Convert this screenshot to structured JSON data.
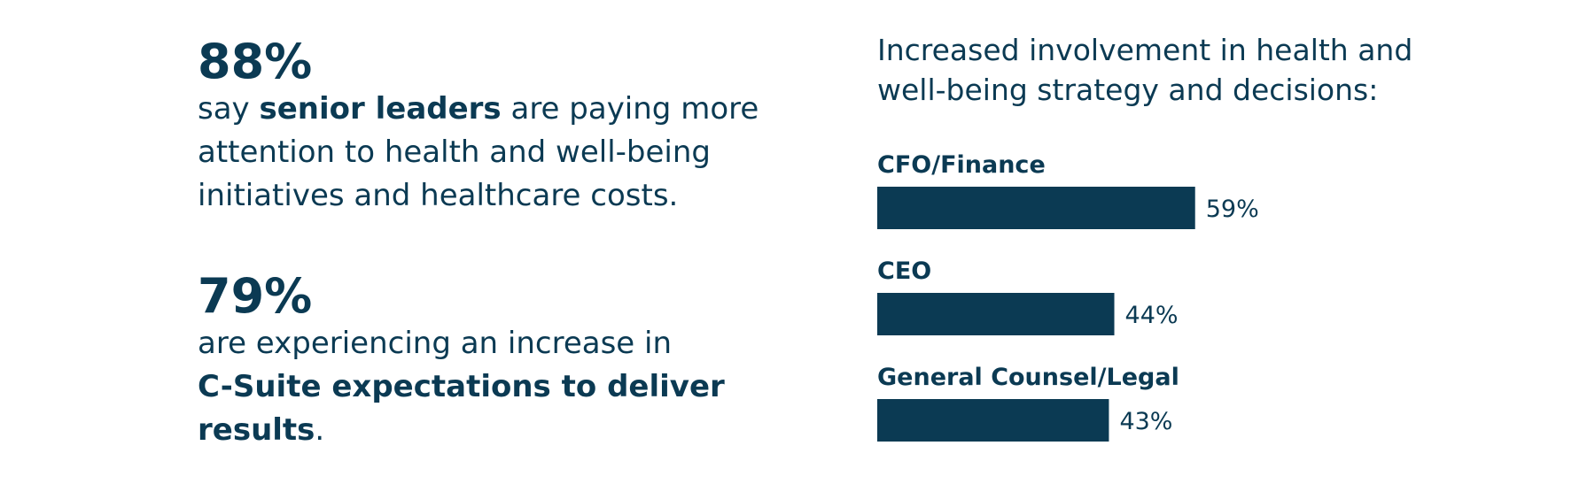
{
  "stats": [
    {
      "value": "88%",
      "text_parts": [
        {
          "text": "say ",
          "bold": false
        },
        {
          "text": "senior leaders",
          "bold": true
        },
        {
          "text": " are paying more attention to health and well-being initiatives and healthcare costs.",
          "bold": false
        }
      ]
    },
    {
      "value": "79%",
      "text_parts": [
        {
          "text": "are experiencing an increase in ",
          "bold": false
        },
        {
          "text": "C-Suite expectations to deliver results",
          "bold": true
        },
        {
          "text": ".",
          "bold": false
        }
      ]
    }
  ],
  "colors": {
    "primary": "#0b3a53",
    "background": "#ffffff"
  },
  "chart_data": {
    "type": "bar",
    "orientation": "horizontal",
    "title": "Increased involvement in health and well-being strategy and decisions:",
    "categories": [
      "CFO/Finance",
      "CEO",
      "General Counsel/Legal"
    ],
    "values": [
      59,
      44,
      43
    ],
    "value_labels": [
      "59%",
      "44%",
      "43%"
    ],
    "unit": "%",
    "xlim": [
      0,
      100
    ],
    "grid": false,
    "legend": "none",
    "bar_color": "#0b3a53"
  }
}
